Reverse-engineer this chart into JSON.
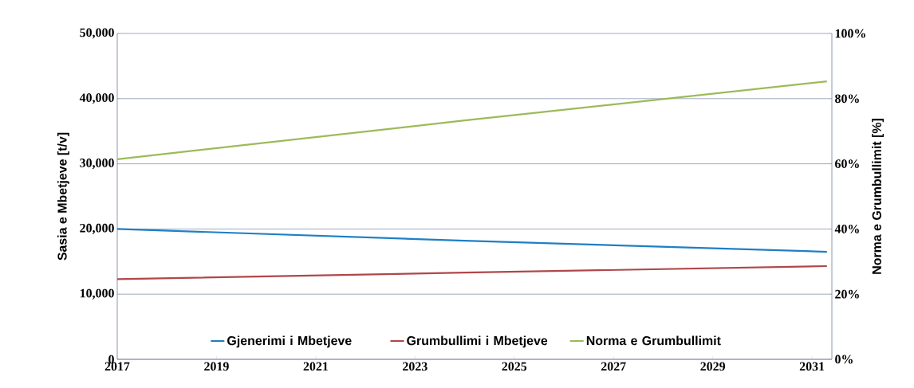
{
  "chart_data": {
    "type": "line",
    "xlabel": null,
    "ylabel": "Sasia e Mbetjeve  [t/v]",
    "y2label": "Norma e Grumbullimit [%]",
    "x": [
      2017,
      2024,
      2031.3
    ],
    "series": [
      {
        "name": "Gjenerimi i Mbetjeve",
        "color": "#1f7fc4",
        "values": [
          20000,
          18200,
          16500
        ]
      },
      {
        "name": "Grumbullimi i Mbetjeve",
        "color": "#b0474a",
        "values": [
          12300,
          13300,
          14300
        ]
      },
      {
        "name": "Norma e Grumbullimit",
        "color": "#9bbb59",
        "values": [
          61.4,
          73.3,
          85.3
        ],
        "axis": "y2"
      }
    ],
    "xlim": [
      2017,
      2031.4
    ],
    "xticks": [
      2017,
      2019,
      2021,
      2023,
      2025,
      2027,
      2029,
      2031
    ],
    "ylim": [
      0,
      50000
    ],
    "yticks": [
      {
        "value": 0,
        "label": "0"
      },
      {
        "value": 10000,
        "label": "10,000"
      },
      {
        "value": 20000,
        "label": "20,000"
      },
      {
        "value": 30000,
        "label": "30,000"
      },
      {
        "value": 40000,
        "label": "40,000"
      },
      {
        "value": 50000,
        "label": "50,000"
      }
    ],
    "y2lim": [
      0,
      100
    ],
    "y2ticks": [
      {
        "value": 0,
        "label": "0%"
      },
      {
        "value": 20,
        "label": "20%"
      },
      {
        "value": 40,
        "label": "40%"
      },
      {
        "value": 60,
        "label": "60%"
      },
      {
        "value": 80,
        "label": "80%"
      },
      {
        "value": 100,
        "label": "100%"
      }
    ],
    "grid": "y",
    "legend": "bottom",
    "marker": "none",
    "line_style": "solid"
  }
}
